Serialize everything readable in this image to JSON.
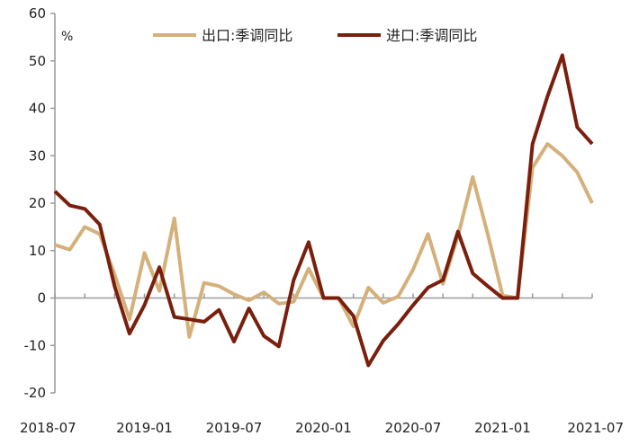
{
  "chart_data": {
    "type": "line",
    "unit_label": "%",
    "ylim": [
      -20,
      60
    ],
    "y_ticks": [
      60,
      50,
      40,
      30,
      20,
      10,
      0,
      -10,
      -20
    ],
    "x_tick_labels": [
      "2018-07",
      "2019-01",
      "2019-07",
      "2020-01",
      "2020-07",
      "2021-01",
      "2021-07"
    ],
    "x": [
      "2018-07",
      "2018-08",
      "2018-09",
      "2018-10",
      "2018-11",
      "2018-12",
      "2019-01",
      "2019-02",
      "2019-03",
      "2019-04",
      "2019-05",
      "2019-06",
      "2019-07",
      "2019-08",
      "2019-09",
      "2019-10",
      "2019-11",
      "2019-12",
      "2020-01",
      "2020-02",
      "2020-03",
      "2020-04",
      "2020-05",
      "2020-06",
      "2020-07",
      "2020-08",
      "2020-09",
      "2020-10",
      "2020-11",
      "2020-12",
      "2021-01",
      "2021-02",
      "2021-03",
      "2021-04",
      "2021-05",
      "2021-06",
      "2021-07"
    ],
    "series": [
      {
        "name": "出口:季调同比",
        "color": "#d4b07a",
        "values": [
          11.2,
          10.2,
          15.0,
          13.5,
          5.0,
          -4.5,
          9.5,
          1.5,
          16.8,
          -8.2,
          3.2,
          2.5,
          0.8,
          -0.5,
          1.2,
          -1.2,
          -0.8,
          6.2,
          0.0,
          0.0,
          -6.0,
          2.2,
          -1.0,
          0.3,
          6.0,
          13.5,
          3.0,
          13.0,
          25.5,
          13.5,
          0.5,
          0.0,
          27.5,
          32.5,
          30.0,
          26.5,
          20.0
        ]
      },
      {
        "name": "进口:季调同比",
        "color": "#7a1f0d",
        "values": [
          22.5,
          19.5,
          18.8,
          15.5,
          2.5,
          -7.5,
          -1.5,
          6.5,
          -4.0,
          -4.5,
          -5.0,
          -2.5,
          -9.2,
          -2.2,
          -8.0,
          -10.2,
          3.8,
          11.8,
          0.0,
          0.0,
          -3.8,
          -14.2,
          -9.0,
          -5.5,
          -1.5,
          2.2,
          3.8,
          14.0,
          5.2,
          2.5,
          0.0,
          0.0,
          32.5,
          42.5,
          51.2,
          36.0,
          32.5
        ]
      }
    ]
  }
}
